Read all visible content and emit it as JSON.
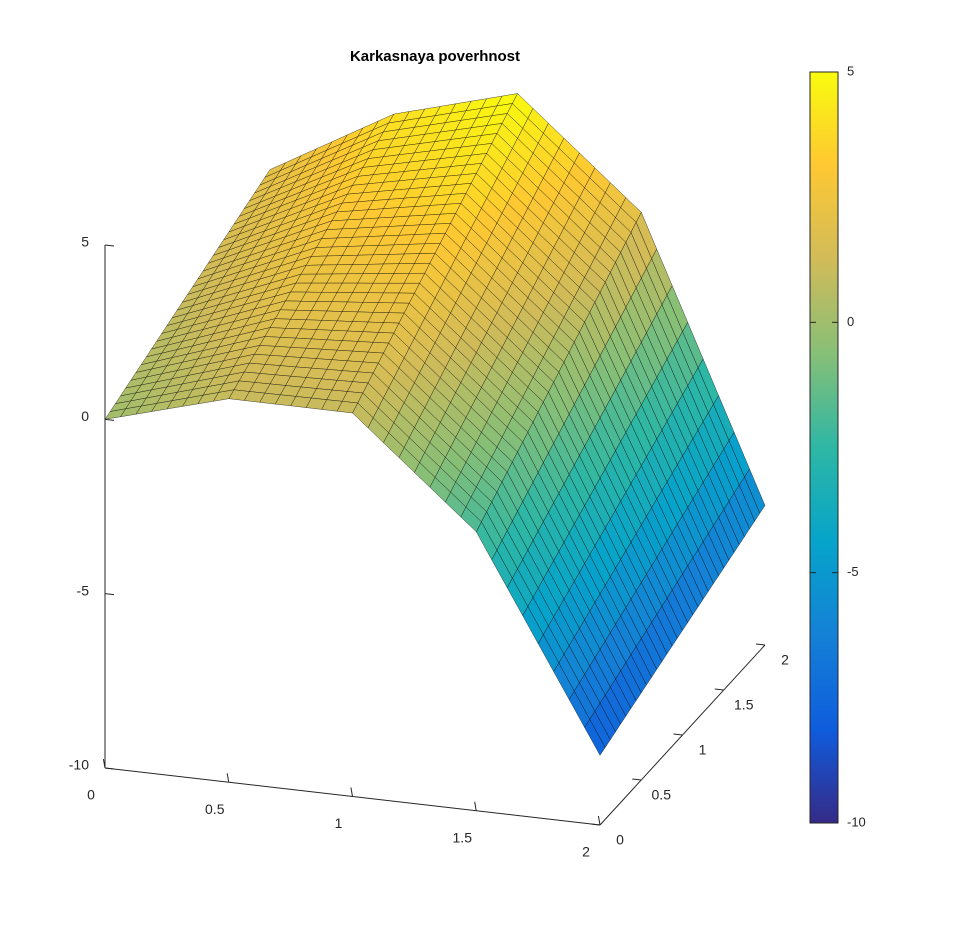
{
  "chart_data": {
    "type": "surface",
    "title": "Karkasnaya poverhnost",
    "x": [
      0,
      0.5,
      1,
      1.5,
      2
    ],
    "y": [
      0,
      0.5,
      1,
      1.5,
      2
    ],
    "z": [
      [
        0,
        1,
        1,
        -2,
        -8
      ],
      [
        0.5,
        1.75,
        2,
        -1,
        -7.5
      ],
      [
        1,
        2.5,
        3,
        0,
        -7
      ],
      [
        1.5,
        3.25,
        4,
        1,
        -6.5
      ],
      [
        2,
        4,
        5,
        2,
        -6
      ]
    ],
    "xlim": [
      0,
      2
    ],
    "ylim": [
      0,
      2
    ],
    "zlim": [
      -10,
      5
    ],
    "xticks": [
      0,
      0.5,
      1,
      1.5,
      2
    ],
    "yticks": [
      0,
      0.5,
      1,
      1.5,
      2
    ],
    "zticks": [
      -10,
      -5,
      0,
      5
    ],
    "clim": [
      -10,
      5
    ],
    "colorbar_ticks": [
      -10,
      -5,
      0,
      5
    ],
    "colormap": [
      "#352a87",
      "#0f5cdd",
      "#1481d6",
      "#06a4ca",
      "#2eb7a4",
      "#87bf77",
      "#d1bb59",
      "#fec832",
      "#f9fb0e"
    ],
    "edge_color": "#000000"
  }
}
